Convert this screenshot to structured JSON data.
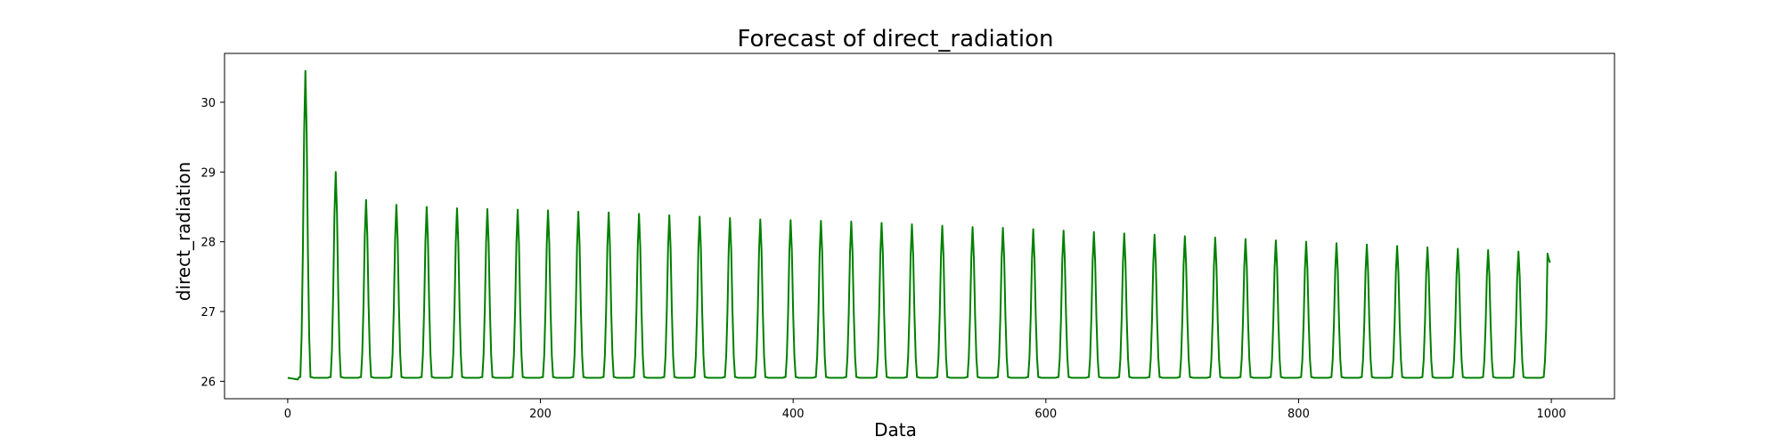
{
  "chart_data": {
    "type": "line",
    "title": "Forecast of direct_radiation",
    "xlabel": "Data",
    "ylabel": "direct_radiation",
    "xlim": [
      -50,
      1050
    ],
    "ylim": [
      25.75,
      30.7
    ],
    "xticks": [
      0,
      200,
      400,
      600,
      800,
      1000
    ],
    "yticks": [
      26,
      27,
      28,
      29,
      30
    ],
    "grid": false,
    "legend": "none",
    "series_color": "#008000",
    "series": [
      {
        "n_points": 1000,
        "period": 24,
        "baseline": 26.05,
        "trough_value": 26.0,
        "first_peak_index": 14,
        "peak_values": [
          30.45,
          29.0,
          28.6,
          28.53,
          28.5,
          28.48,
          28.47,
          28.46,
          28.45,
          28.43,
          28.42,
          28.4,
          28.38,
          28.36,
          28.34,
          28.32,
          28.31,
          28.3,
          28.29,
          28.27,
          28.25,
          28.23,
          28.21,
          28.2,
          28.18,
          28.16,
          28.14,
          28.12,
          28.1,
          28.08,
          28.06,
          28.04,
          28.02,
          28.0,
          27.98,
          27.96,
          27.94,
          27.92,
          27.9,
          27.88,
          27.86,
          27.85
        ],
        "last_values": [
          27.83,
          27.75,
          27.7
        ]
      }
    ]
  }
}
